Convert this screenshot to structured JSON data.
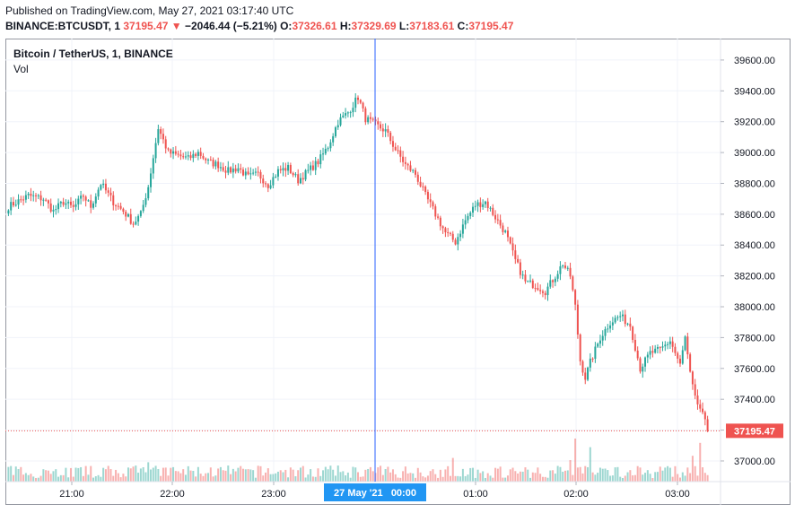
{
  "header": {
    "published": "Published on TradingView.com, May 27, 2021 03:17:40 UTC",
    "symbol": "BINANCE:BTCUSDT, 1",
    "last": "37195.47",
    "change_arrow": "▼",
    "change": "−2046.44 (−5.21%)",
    "o_label": "O:",
    "o_value": "37326.61",
    "h_label": "H:",
    "h_value": "37329.69",
    "l_label": "L:",
    "l_value": "37183.61",
    "c_label": "C:",
    "c_value": "37195.47"
  },
  "legend": {
    "title": "Bitcoin / TetherUS, 1, BINANCE",
    "volume_label": "Vol"
  },
  "colors": {
    "up": "#26a69a",
    "down": "#ef5350",
    "crosshair": "#2962ff",
    "price_tag": "#ef5350",
    "axis_text": "#131722"
  },
  "chart_data": {
    "type": "candlestick",
    "title": "Bitcoin / TetherUS, 1, BINANCE",
    "x_ticks": [
      "21:00",
      "22:00",
      "23:00",
      "01:00",
      "02:00",
      "03:00"
    ],
    "crosshair_label": "27 May '21   00:00",
    "y_ticks": [
      37000,
      37200,
      37400,
      37600,
      37800,
      38000,
      38200,
      38400,
      38600,
      38800,
      39000,
      39200,
      39400,
      39600
    ],
    "y_tick_labels": [
      "37000.00",
      "37200.00",
      "37400.00",
      "37600.00",
      "37800.00",
      "38000.00",
      "38200.00",
      "38400.00",
      "38600.00",
      "38800.00",
      "39000.00",
      "39200.00",
      "39400.00",
      "39600.00"
    ],
    "ylim": [
      36930,
      39710
    ],
    "last_price": 37195.47,
    "last_price_label": "37195.47",
    "grid": true,
    "close_path": [
      [
        0,
        38650
      ],
      [
        8,
        38720
      ],
      [
        14,
        38700
      ],
      [
        18,
        38620
      ],
      [
        22,
        38680
      ],
      [
        26,
        38640
      ],
      [
        30,
        38720
      ],
      [
        33,
        38650
      ],
      [
        37,
        38800
      ],
      [
        42,
        38680
      ],
      [
        46,
        38620
      ],
      [
        50,
        38540
      ],
      [
        53,
        38600
      ],
      [
        56,
        38780
      ],
      [
        60,
        39160
      ],
      [
        64,
        39000
      ],
      [
        68,
        38980
      ],
      [
        72,
        38960
      ],
      [
        76,
        39000
      ],
      [
        80,
        38940
      ],
      [
        84,
        38920
      ],
      [
        88,
        38880
      ],
      [
        92,
        38900
      ],
      [
        96,
        38840
      ],
      [
        100,
        38860
      ],
      [
        104,
        38790
      ],
      [
        108,
        38880
      ],
      [
        112,
        38900
      ],
      [
        116,
        38820
      ],
      [
        120,
        38880
      ],
      [
        124,
        38940
      ],
      [
        128,
        39040
      ],
      [
        132,
        39200
      ],
      [
        136,
        39260
      ],
      [
        140,
        39360
      ],
      [
        143,
        39220
      ],
      [
        147,
        39180
      ],
      [
        151,
        39140
      ],
      [
        155,
        39020
      ],
      [
        159,
        38920
      ],
      [
        163,
        38860
      ],
      [
        167,
        38720
      ],
      [
        171,
        38600
      ],
      [
        175,
        38480
      ],
      [
        179,
        38420
      ],
      [
        183,
        38560
      ],
      [
        187,
        38660
      ],
      [
        191,
        38680
      ],
      [
        195,
        38580
      ],
      [
        199,
        38480
      ],
      [
        203,
        38300
      ],
      [
        207,
        38160
      ],
      [
        211,
        38140
      ],
      [
        215,
        38100
      ],
      [
        219,
        38200
      ],
      [
        222,
        38280
      ],
      [
        225,
        38200
      ],
      [
        227,
        38000
      ],
      [
        229,
        37650
      ],
      [
        231,
        37540
      ],
      [
        233,
        37640
      ],
      [
        237,
        37800
      ],
      [
        241,
        37900
      ],
      [
        245,
        37940
      ],
      [
        249,
        37880
      ],
      [
        253,
        37600
      ],
      [
        257,
        37700
      ],
      [
        261,
        37720
      ],
      [
        265,
        37780
      ],
      [
        269,
        37620
      ],
      [
        271,
        37800
      ],
      [
        273,
        37560
      ],
      [
        275,
        37400
      ],
      [
        277,
        37340
      ],
      [
        280,
        37200
      ]
    ],
    "volume_spikes": [
      [
        56,
        0.45
      ],
      [
        178,
        0.55
      ],
      [
        225,
        0.5
      ],
      [
        227,
        1.0
      ],
      [
        233,
        0.8
      ],
      [
        274,
        0.6
      ],
      [
        277,
        0.9
      ]
    ]
  }
}
